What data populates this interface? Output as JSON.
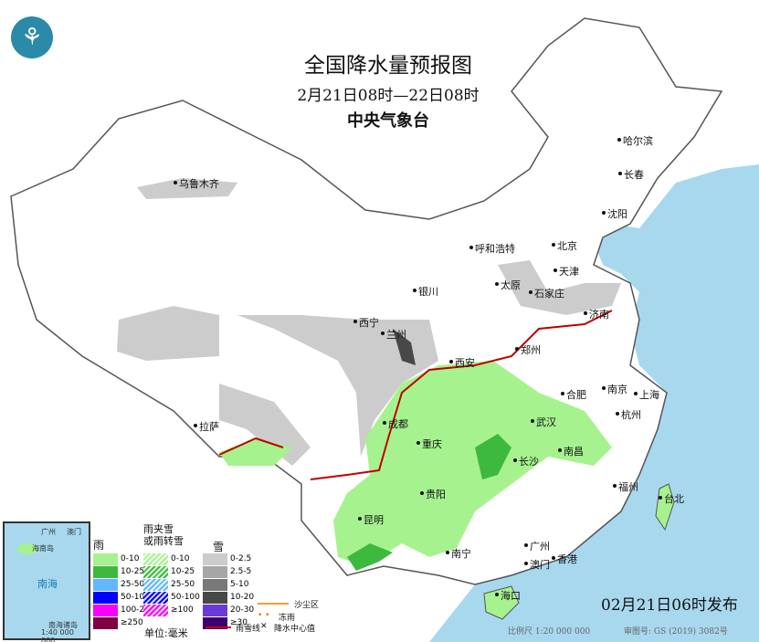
{
  "header": {
    "title": "全国降水量预报图",
    "period": "2月21日08时—22日08时",
    "organization": "中央气象台",
    "logo": "中央气象台"
  },
  "cities": [
    "乌鲁木齐",
    "哈尔滨",
    "长春",
    "沈阳",
    "呼和浩特",
    "北京",
    "天津",
    "太原",
    "石家庄",
    "银川",
    "济南",
    "西宁",
    "兰州",
    "郑州",
    "西安",
    "合肥",
    "南京",
    "上海",
    "成都",
    "武汉",
    "杭州",
    "拉萨",
    "重庆",
    "长沙",
    "南昌",
    "福州",
    "台北",
    "贵阳",
    "昆明",
    "南宁",
    "广州",
    "香港",
    "澳门",
    "海口"
  ],
  "inset": {
    "labels": [
      "广州",
      "澳门",
      "海南岛",
      "南海",
      "南海诸岛"
    ],
    "scale": "1:40 000 000"
  },
  "legend": {
    "rain": {
      "title": "雨",
      "items": [
        {
          "label": "0-10",
          "color": "#a6f28f"
        },
        {
          "label": "10-25",
          "color": "#3dba3d"
        },
        {
          "label": "25-50",
          "color": "#61b8ff"
        },
        {
          "label": "50-100",
          "color": "#0000fe"
        },
        {
          "label": "100-250",
          "color": "#fa00fa"
        },
        {
          "label": "≥250",
          "color": "#800040"
        }
      ]
    },
    "mixed": {
      "title": "雨夹雪\n或雨转雪",
      "items": [
        {
          "label": "0-10",
          "color": "#a6f28f"
        },
        {
          "label": "10-25",
          "color": "#3dba3d"
        },
        {
          "label": "25-50",
          "color": "#61b8ff"
        },
        {
          "label": "50-100",
          "color": "#0000fe"
        },
        {
          "label": "≥100",
          "color": "#fa00fa"
        }
      ]
    },
    "snow": {
      "title": "雪",
      "items": [
        {
          "label": "0-2.5",
          "color": "#cccccc"
        },
        {
          "label": "2.5-5",
          "color": "#a6a6a6"
        },
        {
          "label": "5-10",
          "color": "#787878"
        },
        {
          "label": "10-20",
          "color": "#484848"
        },
        {
          "label": "20-30",
          "color": "#6a3ad8"
        },
        {
          "label": "≥30",
          "color": "#3a0070"
        }
      ]
    },
    "unit": "单位:毫米",
    "symbols": [
      {
        "label": "沙尘区",
        "color": "#f0a030"
      },
      {
        "label": "冻雨",
        "color": "#e07020"
      },
      {
        "label": "雨雪线",
        "color": "#c00000"
      },
      {
        "label": "降水中心值",
        "color": "#000000"
      }
    ]
  },
  "issued": "02月21日06时发布",
  "footer": {
    "scale": "比例尺 1:20 000 000",
    "map_number": "审图号: GS (2019) 3082号"
  }
}
